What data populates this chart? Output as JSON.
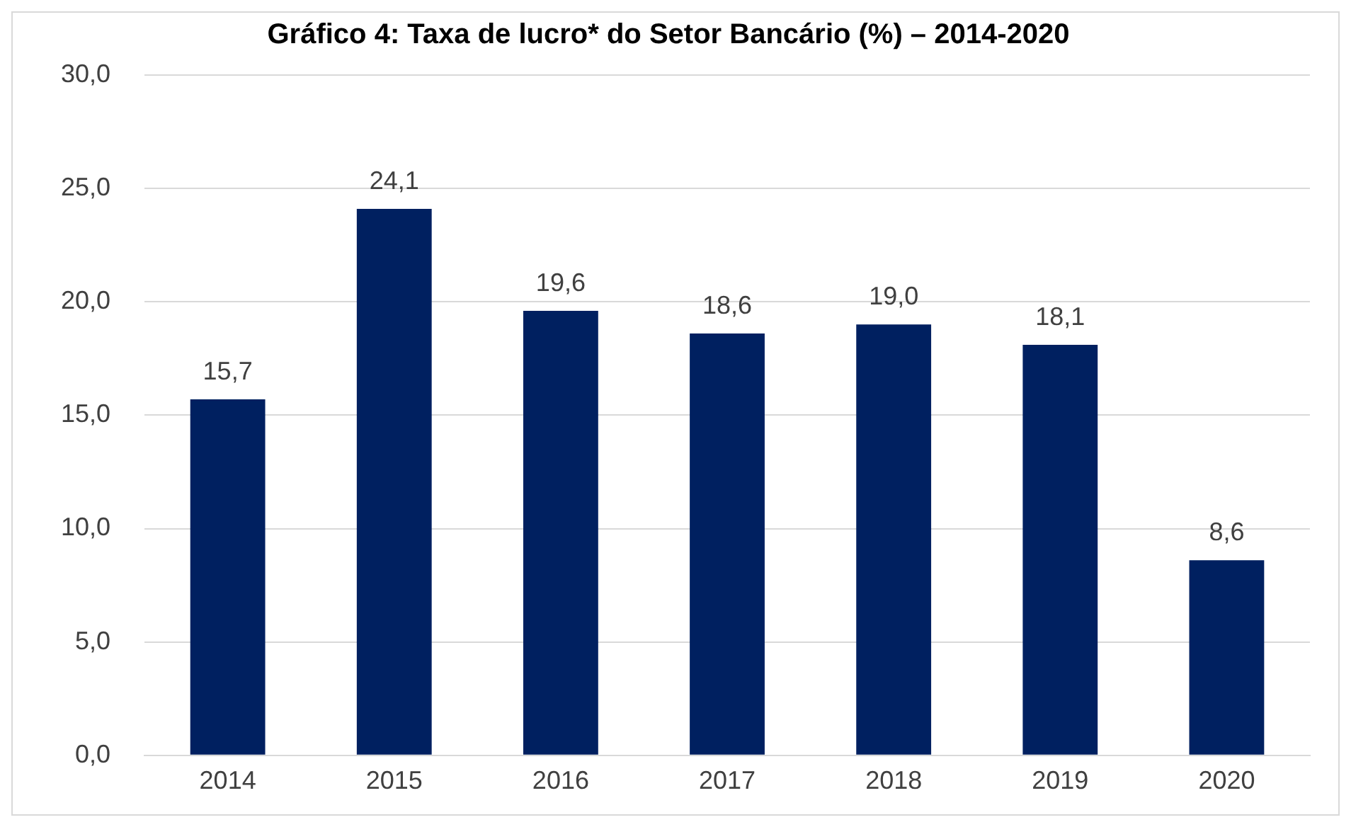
{
  "chart_data": {
    "type": "bar",
    "title": "Gráfico 4: Taxa de lucro* do Setor Bancário (%) – 2014-2020",
    "categories": [
      "2014",
      "2015",
      "2016",
      "2017",
      "2018",
      "2019",
      "2020"
    ],
    "values": [
      15.7,
      24.1,
      19.6,
      18.6,
      19.0,
      18.1,
      8.6
    ],
    "value_labels": [
      "15,7",
      "24,1",
      "19,6",
      "18,6",
      "19,0",
      "18,1",
      "8,6"
    ],
    "color": "#002060",
    "ylim": [
      0,
      30
    ],
    "yticks": [
      {
        "value": 0,
        "label": "0,0"
      },
      {
        "value": 5,
        "label": "5,0"
      },
      {
        "value": 10,
        "label": "10,0"
      },
      {
        "value": 15,
        "label": "15,0"
      },
      {
        "value": 20,
        "label": "20,0"
      },
      {
        "value": 25,
        "label": "25,0"
      },
      {
        "value": 30,
        "label": "30,0"
      }
    ],
    "grid": "y",
    "legend": false
  }
}
